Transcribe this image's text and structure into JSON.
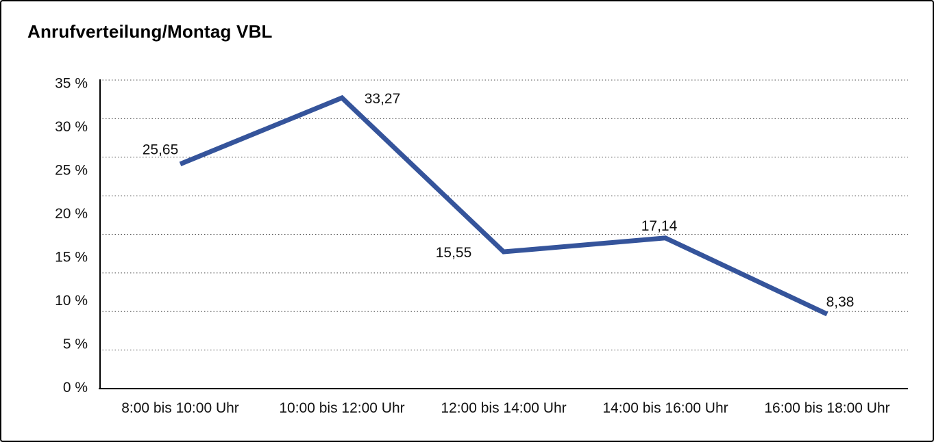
{
  "title": "Anrufverteilung/Montag VBL",
  "window": {
    "background": "#ffffff",
    "border_color": "#000000"
  },
  "chart_data": {
    "type": "line",
    "title": "Anrufverteilung/Montag VBL",
    "categories": [
      "8:00 bis 10:00 Uhr",
      "10:00 bis 12:00 Uhr",
      "12:00 bis 14:00 Uhr",
      "14:00 bis 16:00 Uhr",
      "16:00 bis 18:00 Uhr"
    ],
    "values": [
      25.65,
      33.27,
      15.55,
      17.14,
      8.38
    ],
    "data_labels": [
      "25,65",
      "33,27",
      "15,55",
      "17,14",
      "8,38"
    ],
    "xlabel": "",
    "ylabel": "",
    "ylim": [
      0,
      35
    ],
    "ytick_step": 5,
    "ytick_labels": [
      "35 %",
      "30 %",
      "25 %",
      "20 %",
      "15 %",
      "10 %",
      "5 %",
      "0 %"
    ],
    "grid": "horizontal dotted",
    "legend": "none",
    "line_color": "#35549b",
    "text_color": "#111111",
    "decimal_separator": ","
  }
}
